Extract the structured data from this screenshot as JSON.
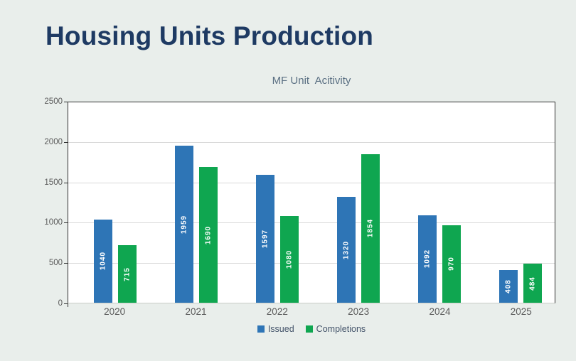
{
  "page": {
    "background_color": "#e9eeeb",
    "title": "Housing Units Production",
    "title_color": "#1e3a63"
  },
  "chart_data": {
    "type": "bar",
    "title": "MF Unit  Acitivity",
    "title_color": "#5b7083",
    "categories": [
      "2020",
      "2021",
      "2022",
      "2023",
      "2024",
      "2025"
    ],
    "series": [
      {
        "name": "Issued",
        "color": "#2E75B6",
        "values": [
          1040,
          1959,
          1597,
          1320,
          1092,
          408
        ]
      },
      {
        "name": "Completions",
        "color": "#0FA650",
        "values": [
          715,
          1690,
          1080,
          1854,
          970,
          484
        ]
      }
    ],
    "xlabel": "",
    "ylabel": "",
    "ylim": [
      0,
      2500
    ],
    "yticks": [
      0,
      500,
      1000,
      1500,
      2000,
      2500
    ],
    "grid": true,
    "gridline_color": "#d9d9d9",
    "plot_background": "#ffffff",
    "plot_border_color": "#2f2f2f",
    "axis_label_color": "#595959",
    "data_labels": {
      "position": "inside-center",
      "orientation": "rotated-90-reading-bottom-to-top",
      "color": "#ffffff"
    },
    "legend_position": "bottom"
  }
}
